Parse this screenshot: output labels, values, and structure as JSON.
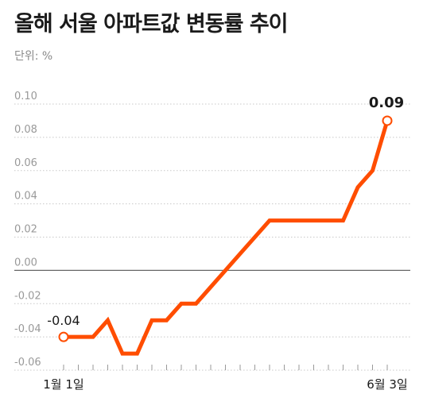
{
  "title": "올해 서울 아파트값 변동률 추이",
  "unit_label": "단위: %",
  "colors": {
    "line": "#ff4d00",
    "grid": "#c8c8c8",
    "zero_line": "#666666",
    "tick_text": "#999999",
    "label_text": "#1a1a1a"
  },
  "chart_data": {
    "type": "line",
    "title": "올해 서울 아파트값 변동률 추이",
    "ylabel": "단위: %",
    "ylim": [
      -0.06,
      0.1
    ],
    "yticks": [
      "0.10",
      "0.08",
      "0.06",
      "0.04",
      "0.02",
      "0.00",
      "-0.02",
      "-0.04",
      "-0.06"
    ],
    "yticks_values": [
      0.1,
      0.08,
      0.06,
      0.04,
      0.02,
      0.0,
      -0.02,
      -0.04,
      -0.06
    ],
    "x_tick_labels": [
      "1월 1일",
      "6월 3일"
    ],
    "grid": "horizontal dotted",
    "series": [
      {
        "values": [
          -0.04,
          -0.04,
          -0.04,
          -0.03,
          -0.05,
          -0.05,
          -0.03,
          -0.03,
          -0.02,
          -0.02,
          -0.01,
          0.0,
          0.01,
          0.02,
          0.03,
          0.03,
          0.03,
          0.03,
          0.03,
          0.03,
          0.05,
          0.06,
          0.09
        ]
      }
    ],
    "annotations": {
      "first": "-0.04",
      "last": "0.09"
    }
  }
}
